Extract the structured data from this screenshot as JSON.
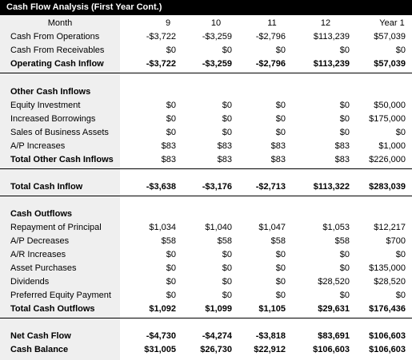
{
  "title": "Cash Flow Analysis (First Year Cont.)",
  "header": {
    "label": "Month",
    "cols": [
      "9",
      "10",
      "11",
      "12",
      "Year 1"
    ]
  },
  "sections": {
    "ops": {
      "rows": [
        {
          "label": "Cash From Operations",
          "values": [
            "-$3,722",
            "-$3,259",
            "-$2,796",
            "$113,239",
            "$57,039"
          ]
        },
        {
          "label": "Cash From Receivables",
          "values": [
            "$0",
            "$0",
            "$0",
            "$0",
            "$0"
          ]
        },
        {
          "label": "Operating Cash Inflow",
          "values": [
            "-$3,722",
            "-$3,259",
            "-$2,796",
            "$113,239",
            "$57,039"
          ]
        }
      ]
    },
    "other": {
      "heading": "Other Cash Inflows",
      "rows": [
        {
          "label": "Equity Investment",
          "values": [
            "$0",
            "$0",
            "$0",
            "$0",
            "$50,000"
          ]
        },
        {
          "label": "Increased Borrowings",
          "values": [
            "$0",
            "$0",
            "$0",
            "$0",
            "$175,000"
          ]
        },
        {
          "label": "Sales of Business Assets",
          "values": [
            "$0",
            "$0",
            "$0",
            "$0",
            "$0"
          ]
        },
        {
          "label": "A/P Increases",
          "values": [
            "$83",
            "$83",
            "$83",
            "$83",
            "$1,000"
          ]
        },
        {
          "label": "Total Other Cash Inflows",
          "values": [
            "$83",
            "$83",
            "$83",
            "$83",
            "$226,000"
          ]
        }
      ]
    },
    "total_inflow": {
      "rows": [
        {
          "label": "Total Cash Inflow",
          "values": [
            "-$3,638",
            "-$3,176",
            "-$2,713",
            "$113,322",
            "$283,039"
          ]
        }
      ]
    },
    "outflows": {
      "heading": "Cash Outflows",
      "rows": [
        {
          "label": "Repayment of Principal",
          "values": [
            "$1,034",
            "$1,040",
            "$1,047",
            "$1,053",
            "$12,217"
          ]
        },
        {
          "label": "A/P Decreases",
          "values": [
            "$58",
            "$58",
            "$58",
            "$58",
            "$700"
          ]
        },
        {
          "label": "A/R Increases",
          "values": [
            "$0",
            "$0",
            "$0",
            "$0",
            "$0"
          ]
        },
        {
          "label": "Asset Purchases",
          "values": [
            "$0",
            "$0",
            "$0",
            "$0",
            "$135,000"
          ]
        },
        {
          "label": "Dividends",
          "values": [
            "$0",
            "$0",
            "$0",
            "$28,520",
            "$28,520"
          ]
        },
        {
          "label": "Preferred Equity Payment",
          "values": [
            "$0",
            "$0",
            "$0",
            "$0",
            "$0"
          ]
        },
        {
          "label": "Total Cash Outflows",
          "values": [
            "$1,092",
            "$1,099",
            "$1,105",
            "$29,631",
            "$176,436"
          ]
        }
      ]
    },
    "net": {
      "rows": [
        {
          "label": "Net Cash Flow",
          "values": [
            "-$4,730",
            "-$4,274",
            "-$3,818",
            "$83,691",
            "$106,603"
          ]
        },
        {
          "label": "Cash Balance",
          "values": [
            "$31,005",
            "$26,730",
            "$22,912",
            "$106,603",
            "$106,603"
          ]
        }
      ]
    }
  }
}
